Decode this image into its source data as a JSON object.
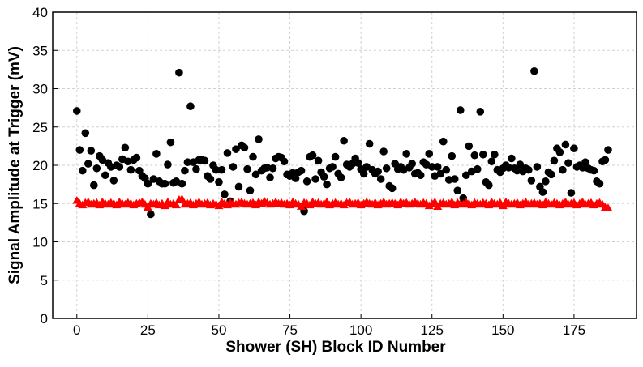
{
  "chart_data": {
    "type": "scatter",
    "xlabel": "Shower (SH) Block ID Number",
    "ylabel": "Signal Amplitude at Trigger (mV)",
    "xlim": [
      -8.5,
      197
    ],
    "ylim": [
      0,
      40
    ],
    "xticks": [
      0,
      25,
      50,
      75,
      100,
      125,
      150,
      175
    ],
    "yticks": [
      0,
      5,
      10,
      15,
      20,
      25,
      30,
      35,
      40
    ],
    "grid": true,
    "x": [
      0,
      1,
      2,
      3,
      4,
      5,
      6,
      7,
      8,
      9,
      10,
      11,
      12,
      13,
      14,
      15,
      16,
      17,
      18,
      19,
      20,
      21,
      22,
      23,
      24,
      25,
      26,
      27,
      28,
      29,
      30,
      31,
      32,
      33,
      34,
      35,
      36,
      37,
      38,
      39,
      40,
      41,
      42,
      43,
      44,
      45,
      46,
      47,
      48,
      49,
      50,
      51,
      52,
      53,
      54,
      55,
      56,
      57,
      58,
      59,
      60,
      61,
      62,
      63,
      64,
      65,
      66,
      67,
      68,
      69,
      70,
      71,
      72,
      73,
      74,
      75,
      76,
      77,
      78,
      79,
      80,
      81,
      82,
      83,
      84,
      85,
      86,
      87,
      88,
      89,
      90,
      91,
      92,
      93,
      94,
      95,
      96,
      97,
      98,
      99,
      100,
      101,
      102,
      103,
      104,
      105,
      106,
      107,
      108,
      109,
      110,
      111,
      112,
      113,
      114,
      115,
      116,
      117,
      118,
      119,
      120,
      121,
      122,
      123,
      124,
      125,
      126,
      127,
      128,
      129,
      130,
      131,
      132,
      133,
      134,
      135,
      136,
      137,
      138,
      139,
      140,
      141,
      142,
      143,
      144,
      145,
      146,
      147,
      148,
      149,
      150,
      151,
      152,
      153,
      154,
      155,
      156,
      157,
      158,
      159,
      160,
      161,
      162,
      163,
      164,
      165,
      166,
      167,
      168,
      169,
      170,
      171,
      172,
      173,
      174,
      175,
      176,
      177,
      178,
      179,
      180,
      181,
      182,
      183,
      184,
      185,
      186,
      187
    ],
    "series": [
      {
        "color": "#000000",
        "marker": "circle",
        "values": [
          27.1,
          22,
          19.3,
          24.2,
          20.2,
          21.9,
          17.4,
          19.6,
          21.2,
          20.7,
          18.7,
          20.3,
          19.8,
          18,
          20,
          19.8,
          20.8,
          22.3,
          20.5,
          19.4,
          20.7,
          21,
          19.3,
          18.6,
          18.3,
          17.6,
          13.6,
          18.2,
          21.5,
          17.9,
          17.6,
          17.6,
          20.1,
          23,
          17.7,
          17.9,
          32.1,
          17.6,
          19.3,
          20.4,
          27.7,
          20.4,
          19.5,
          20.7,
          20.7,
          20.6,
          18.6,
          18.2,
          20,
          19.4,
          17.8,
          19.4,
          16.2,
          21.6,
          15.3,
          19.8,
          22.1,
          17.2,
          22.6,
          22.3,
          19.5,
          16.7,
          21.1,
          18.8,
          23.4,
          19.3,
          19.6,
          19.7,
          18.4,
          19.6,
          20.9,
          21.1,
          21,
          20.5,
          18.8,
          18.6,
          19,
          18.3,
          19.1,
          19.3,
          14,
          17.9,
          21.1,
          21.3,
          18.2,
          20.6,
          19.1,
          18.5,
          17.5,
          19.6,
          19.8,
          21.1,
          18.9,
          18.4,
          23.2,
          20.1,
          19.8,
          20.2,
          20.9,
          20.3,
          19.5,
          18.9,
          19.8,
          22.8,
          19.4,
          18.9,
          19.2,
          18.2,
          21.8,
          19.6,
          17.3,
          17,
          20.2,
          19.5,
          19.8,
          19.4,
          21.5,
          19.7,
          20.2,
          18.9,
          19,
          18.7,
          20.4,
          20.1,
          21.5,
          19.8,
          18.6,
          19.8,
          18.9,
          23.1,
          19.4,
          18.1,
          21.2,
          18.2,
          16.7,
          27.2,
          15.7,
          18.7,
          22.5,
          19.2,
          21.3,
          19.5,
          27,
          21.4,
          17.8,
          17.4,
          20.5,
          21.4,
          19.4,
          19.1,
          19.6,
          20,
          19.7,
          20.9,
          19.6,
          19.3,
          20.1,
          19.2,
          19.6,
          19.4,
          18,
          32.3,
          19.8,
          17.2,
          16.5,
          17.9,
          19.1,
          18.8,
          20.6,
          22.2,
          21.7,
          19.4,
          22.7,
          20.3,
          16.4,
          22.2,
          19.8,
          20,
          19.7,
          20.4,
          19.6,
          19.4,
          19.3,
          17.9,
          17.6,
          20.5,
          20.7,
          22
        ]
      },
      {
        "color": "#ff0000",
        "marker": "triangle",
        "values": [
          15.4,
          15.0,
          14.8,
          15.1,
          15.2,
          14.9,
          15.0,
          15.1,
          14.8,
          15.2,
          15.0,
          14.9,
          15.1,
          15.0,
          14.8,
          15.2,
          15.0,
          14.9,
          15.1,
          15.0,
          14.8,
          15.0,
          15.1,
          15.2,
          14.9,
          14.5,
          15.0,
          14.9,
          15.1,
          14.8,
          15.0,
          14.7,
          15.2,
          14.9,
          15.0,
          14.8,
          15.5,
          15.6,
          14.9,
          15.0,
          15.1,
          14.8,
          15.0,
          15.2,
          14.9,
          15.0,
          15.1,
          14.8,
          15.0,
          14.9,
          14.7,
          15.2,
          15.0,
          14.8,
          15.1,
          15.0,
          14.9,
          15.1,
          15.2,
          15.0,
          14.9,
          15.0,
          15.1,
          14.8,
          15.2,
          15.0,
          15.3,
          15.1,
          14.9,
          15.0,
          15.2,
          15.0,
          15.1,
          14.9,
          15.0,
          14.8,
          15.2,
          15.0,
          14.9,
          14.6,
          15.1,
          15.0,
          14.8,
          15.2,
          15.0,
          15.1,
          14.9,
          15.0,
          15.2,
          14.8,
          15.0,
          15.1,
          14.9,
          15.0,
          14.8,
          15.1,
          15.2,
          14.9,
          15.0,
          15.1,
          14.8,
          15.0,
          15.2,
          15.0,
          14.9,
          15.1,
          14.8,
          15.0,
          15.2,
          14.9,
          15.0,
          15.1,
          15.0,
          14.8,
          15.2,
          15.0,
          15.1,
          14.9,
          15.0,
          15.2,
          15.0,
          14.9,
          15.1,
          15.0,
          14.7,
          15.0,
          15.2,
          14.6,
          15.0,
          15.1,
          14.9,
          15.0,
          15.2,
          14.8,
          15.1,
          15.0,
          14.9,
          15.2,
          15.0,
          14.8,
          15.1,
          15.0,
          14.9,
          15.1,
          15.0,
          14.8,
          15.2,
          15.0,
          14.9,
          15.1,
          14.7,
          15.2,
          15.0,
          14.9,
          15.0,
          15.1,
          14.8,
          15.0,
          15.2,
          14.9,
          15.0,
          15.1,
          14.9,
          15.0,
          14.8,
          15.2,
          15.0,
          14.9,
          15.1,
          15.0,
          14.8,
          15.0,
          15.2,
          14.9,
          15.0,
          15.1,
          14.8,
          15.0,
          15.2,
          14.9,
          15.0,
          15.1,
          14.8,
          15.0,
          15.1,
          14.9,
          14.5,
          14.4
        ]
      }
    ]
  }
}
